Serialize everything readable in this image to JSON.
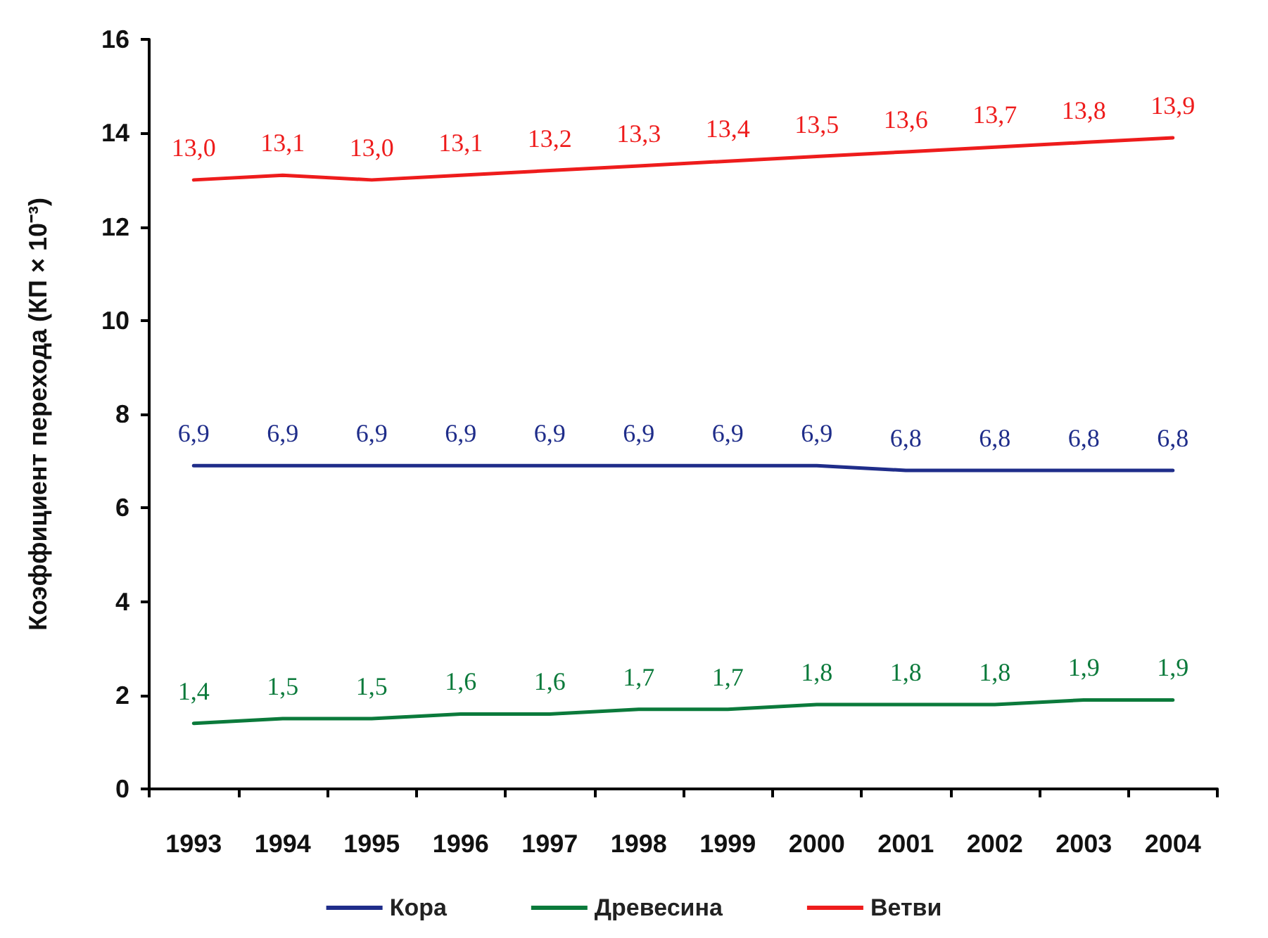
{
  "chart_data": {
    "type": "line",
    "ylabel": "Коэффициент перехода (КП × 10⁻³)",
    "categories": [
      "1993",
      "1994",
      "1995",
      "1996",
      "1997",
      "1998",
      "1999",
      "2000",
      "2001",
      "2002",
      "2003",
      "2004"
    ],
    "series": [
      {
        "name": "Кора",
        "color": "#1f2d8a",
        "values": [
          6.9,
          6.9,
          6.9,
          6.9,
          6.9,
          6.9,
          6.9,
          6.9,
          6.8,
          6.8,
          6.8,
          6.8
        ],
        "value_labels": [
          "6,9",
          "6,9",
          "6,9",
          "6,9",
          "6,9",
          "6,9",
          "6,9",
          "6,9",
          "6,8",
          "6,8",
          "6,8",
          "6,8"
        ]
      },
      {
        "name": "Древесина",
        "color": "#0b7a3b",
        "values": [
          1.4,
          1.5,
          1.5,
          1.6,
          1.6,
          1.7,
          1.7,
          1.8,
          1.8,
          1.8,
          1.9,
          1.9
        ],
        "value_labels": [
          "1,4",
          "1,5",
          "1,5",
          "1,6",
          "1,6",
          "1,7",
          "1,7",
          "1,8",
          "1,8",
          "1,8",
          "1,9",
          "1,9"
        ]
      },
      {
        "name": "Ветви",
        "color": "#ee1c1c",
        "values": [
          13.0,
          13.1,
          13.0,
          13.1,
          13.2,
          13.3,
          13.4,
          13.5,
          13.6,
          13.7,
          13.8,
          13.9
        ],
        "value_labels": [
          "13,0",
          "13,1",
          "13,0",
          "13,1",
          "13,2",
          "13,3",
          "13,4",
          "13,5",
          "13,6",
          "13,7",
          "13,8",
          "13,9"
        ]
      }
    ],
    "ylim": [
      0,
      16
    ],
    "yticks": [
      0,
      2,
      4,
      6,
      8,
      10,
      12,
      14,
      16
    ],
    "grid": false,
    "legend": "bottom",
    "marker": "none",
    "line_style": "solid"
  }
}
